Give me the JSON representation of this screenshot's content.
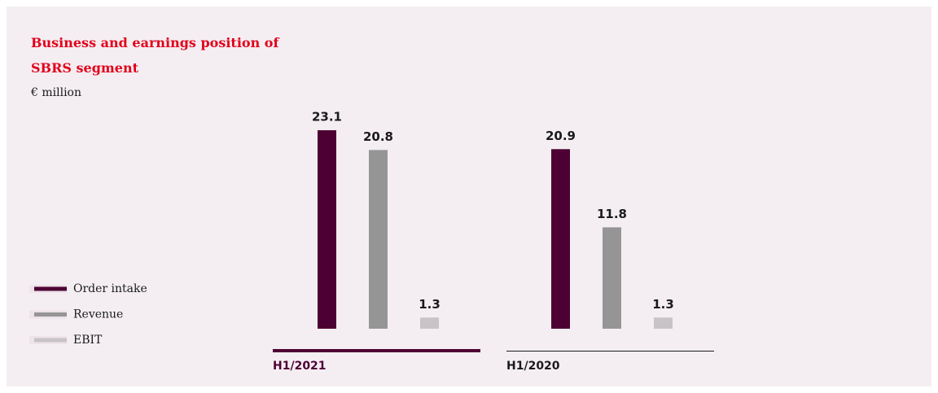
{
  "chart_data": {
    "type": "bar",
    "title": "Business and earnings position of SBRS segment",
    "subtitle": "€ million",
    "categories": [
      "H1/2021",
      "H1/2020"
    ],
    "category_colors": [
      "#4d0033",
      "#1a1a1a"
    ],
    "series": [
      {
        "name": "Order intake",
        "color": "#4d0033",
        "values": [
          23.1,
          20.9
        ]
      },
      {
        "name": "Revenue",
        "color": "#959595",
        "values": [
          20.8,
          11.8
        ]
      },
      {
        "name": "EBIT",
        "color": "#c8c3c6",
        "values": [
          1.3,
          1.3
        ]
      }
    ],
    "legend": "left"
  }
}
